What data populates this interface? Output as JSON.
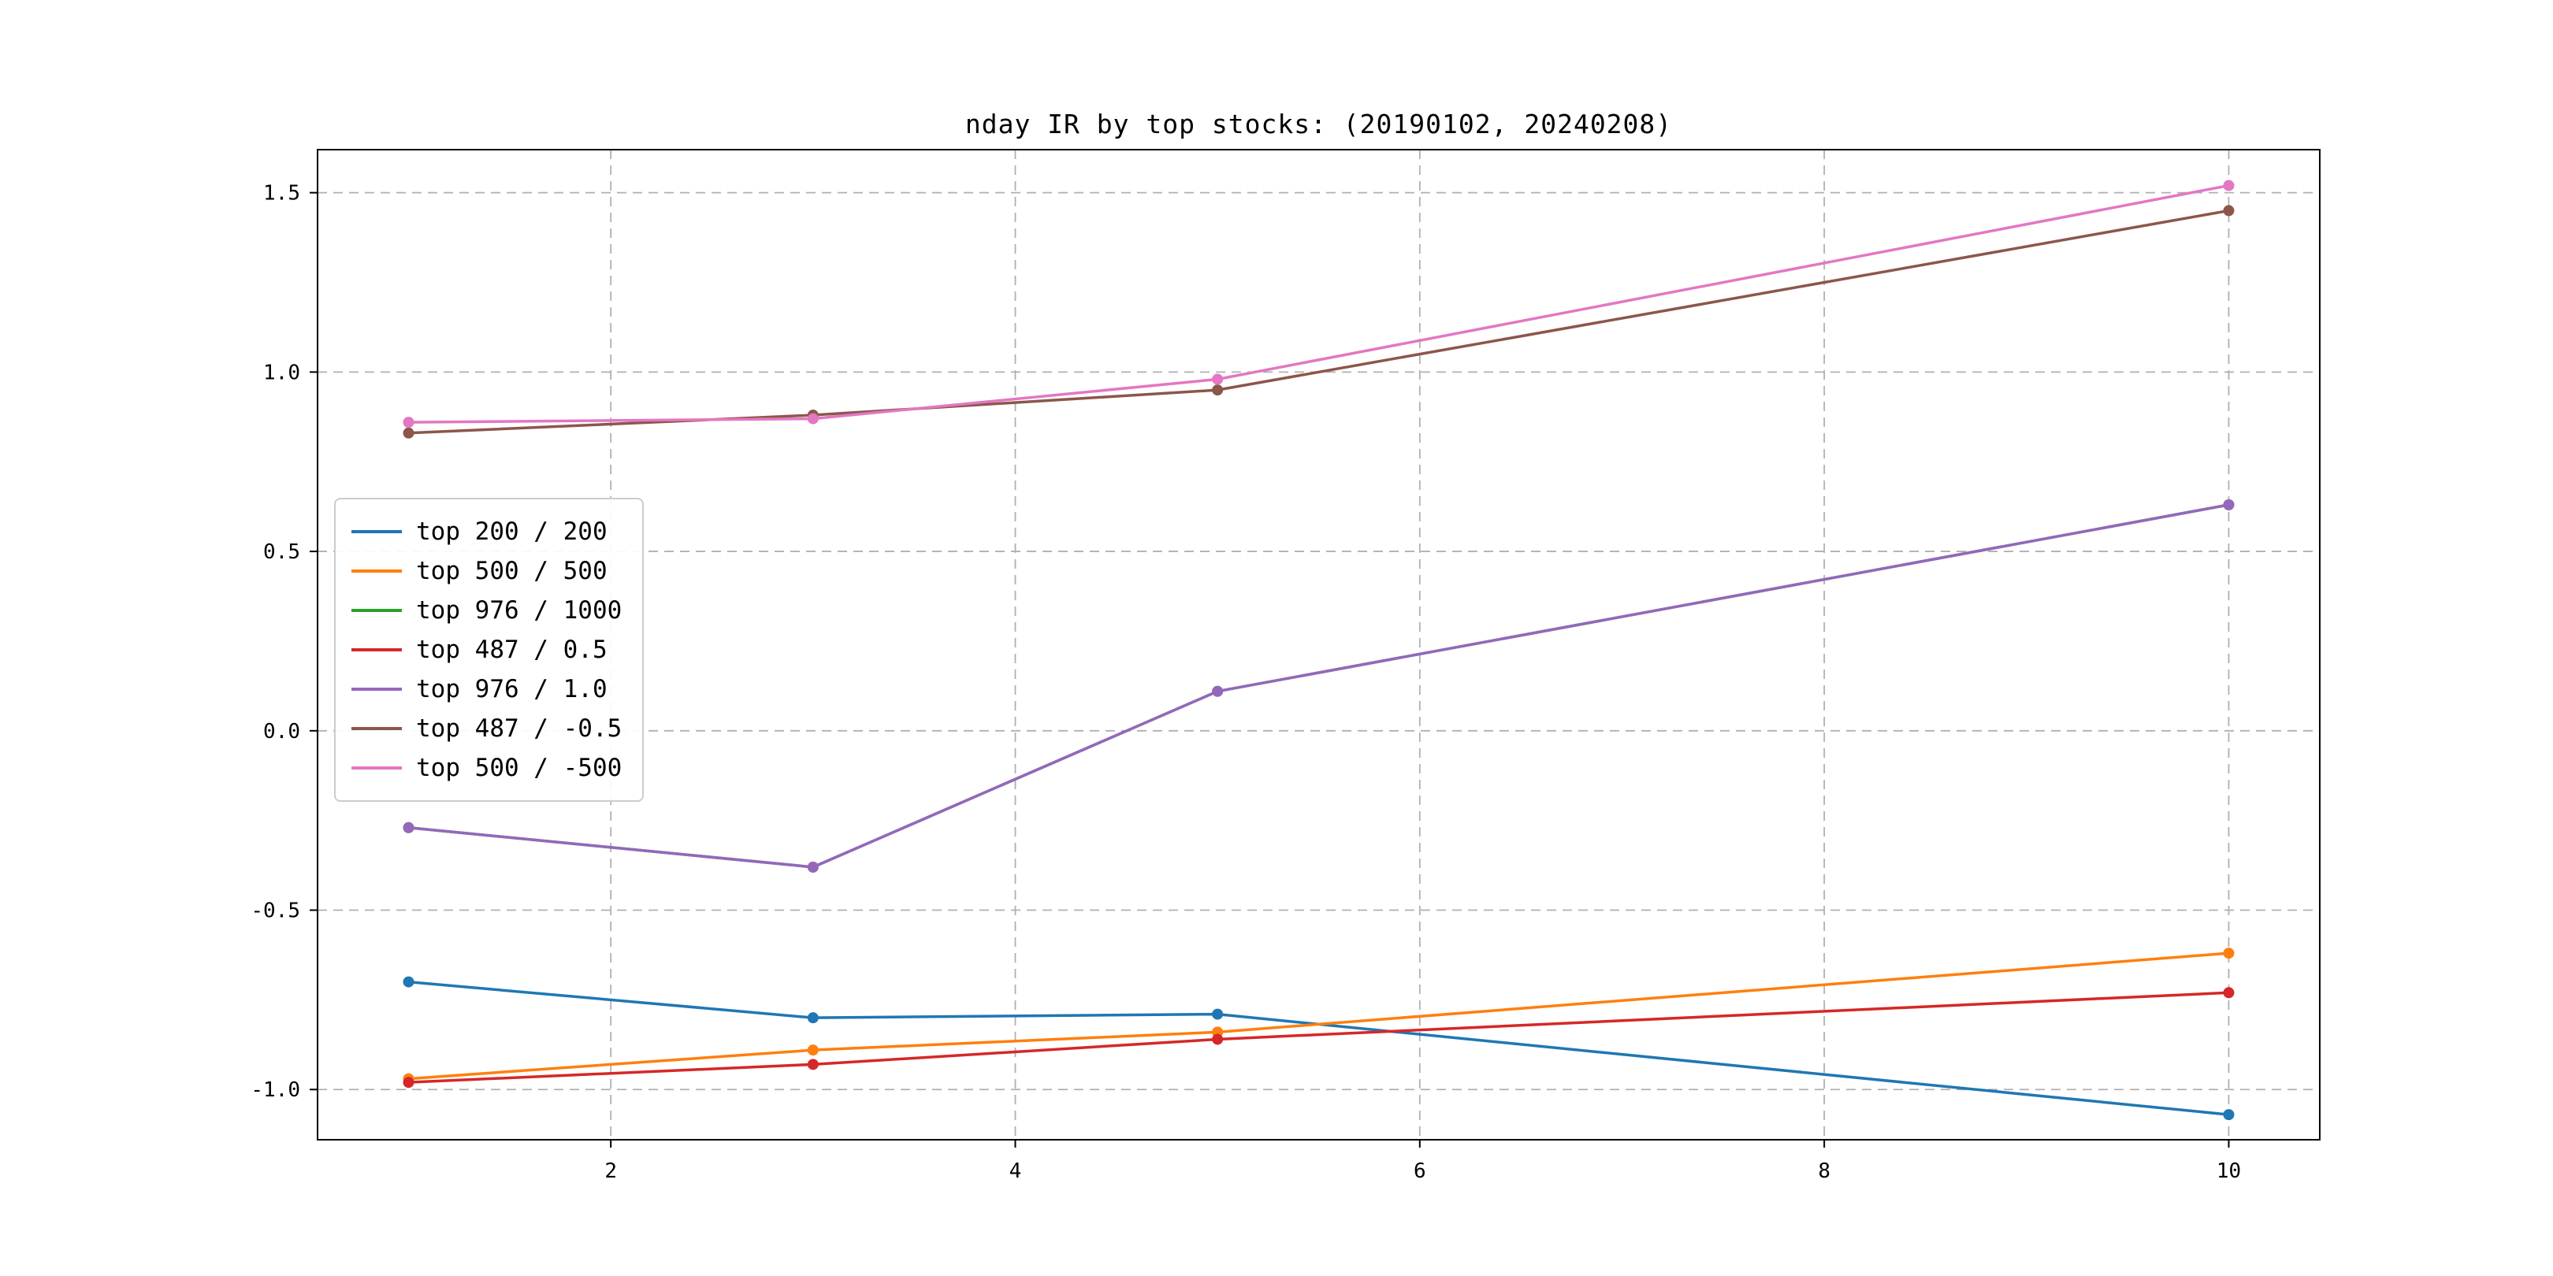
{
  "figure": {
    "background": "#ffffff",
    "border_color": "#000000",
    "grid_color": "#b0b0b0",
    "legend_border_color": "#cccccc"
  },
  "chart_data": {
    "type": "line",
    "title": "nday IR by top stocks: (20190102, 20240208)",
    "xlabel": "",
    "ylabel": "",
    "x": [
      1,
      3,
      5,
      10
    ],
    "xticks": [
      2,
      4,
      6,
      8,
      10
    ],
    "xtick_labels": [
      "2",
      "4",
      "6",
      "8",
      "10"
    ],
    "yticks": [
      -1.0,
      -0.5,
      0.0,
      0.5,
      1.0,
      1.5
    ],
    "ytick_labels": [
      "-1.0",
      "-0.5",
      "0.0",
      "0.5",
      "1.0",
      "1.5"
    ],
    "xlim": [
      0.55,
      10.45
    ],
    "ylim": [
      -1.14,
      1.62
    ],
    "grid": true,
    "grid_style": "dashed",
    "legend_position": "center-left",
    "marker": "o",
    "series": [
      {
        "name": "top 200 / 200",
        "color": "#1f77b4",
        "values": [
          -0.7,
          -0.8,
          -0.79,
          -1.07
        ]
      },
      {
        "name": "top 500 / 500",
        "color": "#ff7f0e",
        "values": [
          -0.97,
          -0.89,
          -0.84,
          -0.62
        ]
      },
      {
        "name": "top 976 / 1000",
        "color": "#2ca02c",
        "values": [
          -0.27,
          -0.38,
          0.11,
          0.63
        ]
      },
      {
        "name": "top 487 / 0.5",
        "color": "#d62728",
        "values": [
          -0.98,
          -0.93,
          -0.86,
          -0.73
        ]
      },
      {
        "name": "top 976 / 1.0",
        "color": "#9467bd",
        "values": [
          -0.27,
          -0.38,
          0.11,
          0.63
        ]
      },
      {
        "name": "top 487 / -0.5",
        "color": "#8c564b",
        "values": [
          0.83,
          0.88,
          0.95,
          1.45
        ]
      },
      {
        "name": "top 500 / -500",
        "color": "#e377c2",
        "values": [
          0.86,
          0.87,
          0.98,
          1.52
        ]
      }
    ]
  }
}
